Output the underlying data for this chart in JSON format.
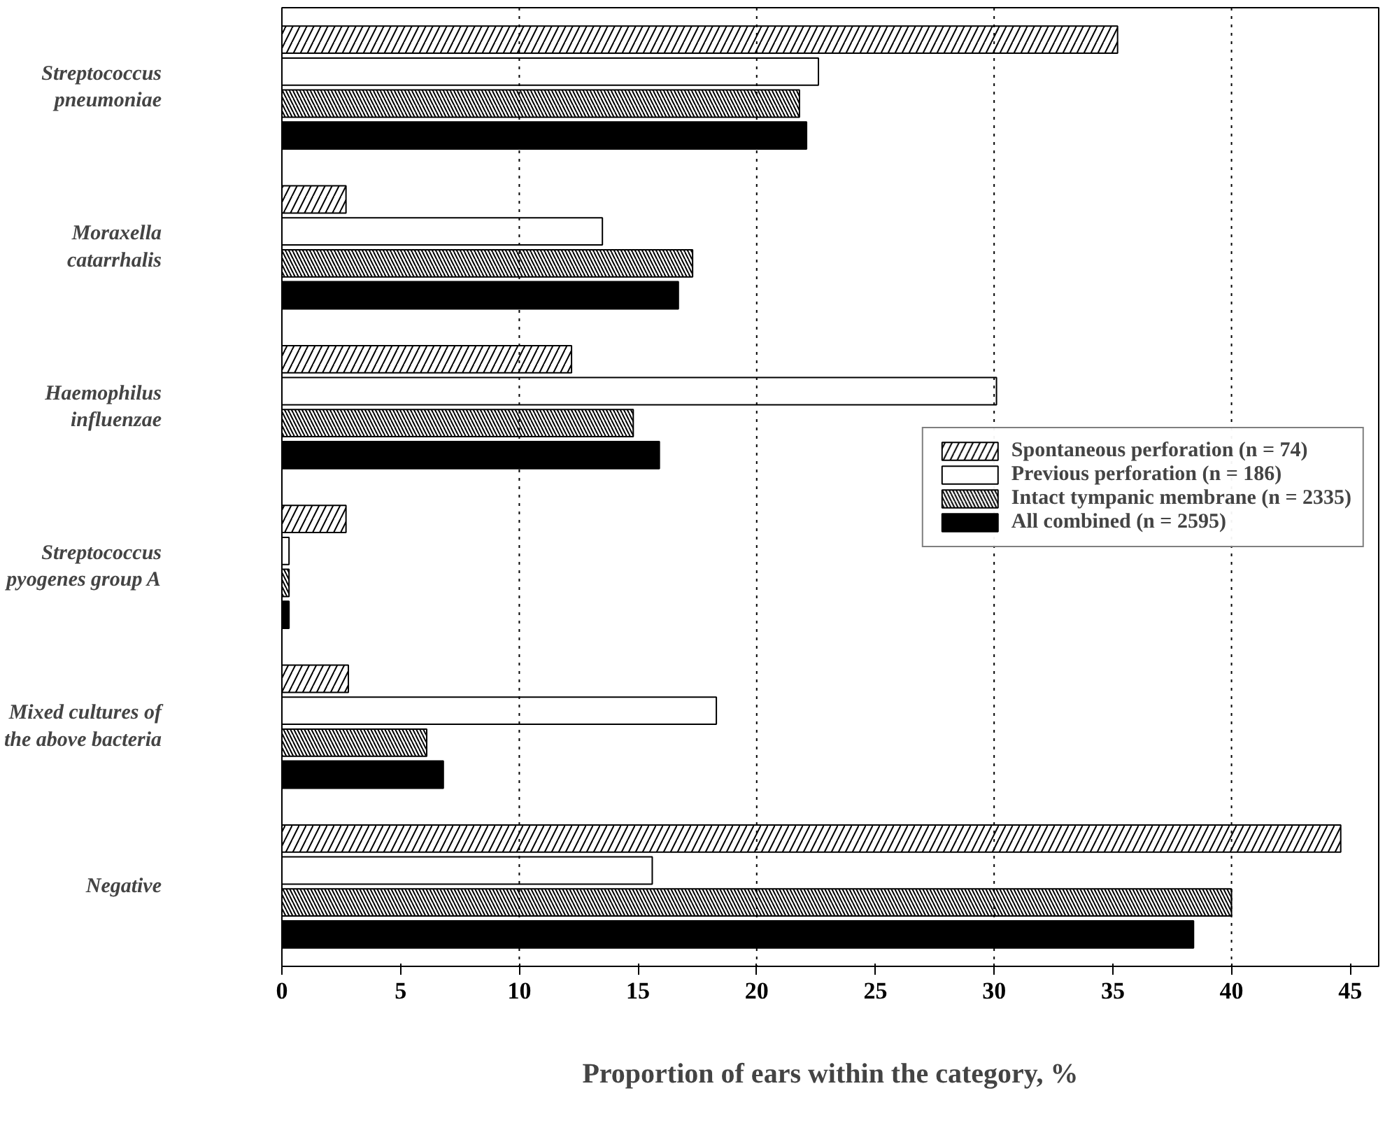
{
  "chart_data": {
    "type": "bar",
    "orientation": "horizontal",
    "xlabel": "Proportion of ears within the category, %",
    "categories": [
      "Streptococcus\npneumoniae",
      "Moraxella\ncatarrhalis",
      "Haemophilus\ninfluenzae",
      "Streptococcus\npyogenes group A",
      "Mixed cultures of\nthe above bacteria",
      "Negative"
    ],
    "series": [
      {
        "name": "Spontaneous perforation (n = 74)",
        "color": "#ffffff",
        "values": [
          35.2,
          2.7,
          12.2,
          2.7,
          2.8,
          44.6
        ]
      },
      {
        "name": "Previous perforation (n = 186)",
        "color": "#ffffff",
        "values": [
          22.6,
          13.5,
          30.1,
          0.3,
          18.3,
          15.6
        ]
      },
      {
        "name": "Intact tympanic membrane (n = 2335)",
        "color": "#ffffff",
        "values": [
          21.8,
          17.3,
          14.8,
          0.3,
          6.1,
          40.0
        ]
      },
      {
        "name": "All combined (n = 2595)",
        "color": "#000000",
        "values": [
          22.1,
          16.7,
          15.9,
          0.3,
          6.8,
          38.4
        ]
      }
    ],
    "xlim": [
      0,
      46.2
    ],
    "xticks": [
      0,
      5,
      10,
      15,
      20,
      25,
      30,
      35,
      40,
      45
    ],
    "ref_lines": [
      {
        "axis": "x",
        "value": 10,
        "line_style": "dotted"
      },
      {
        "axis": "x",
        "value": 20,
        "line_style": "dotted"
      },
      {
        "axis": "x",
        "value": 30,
        "line_style": "dotted"
      },
      {
        "axis": "x",
        "value": 40,
        "line_style": "dotted"
      }
    ],
    "legend": "right",
    "grid": false
  }
}
